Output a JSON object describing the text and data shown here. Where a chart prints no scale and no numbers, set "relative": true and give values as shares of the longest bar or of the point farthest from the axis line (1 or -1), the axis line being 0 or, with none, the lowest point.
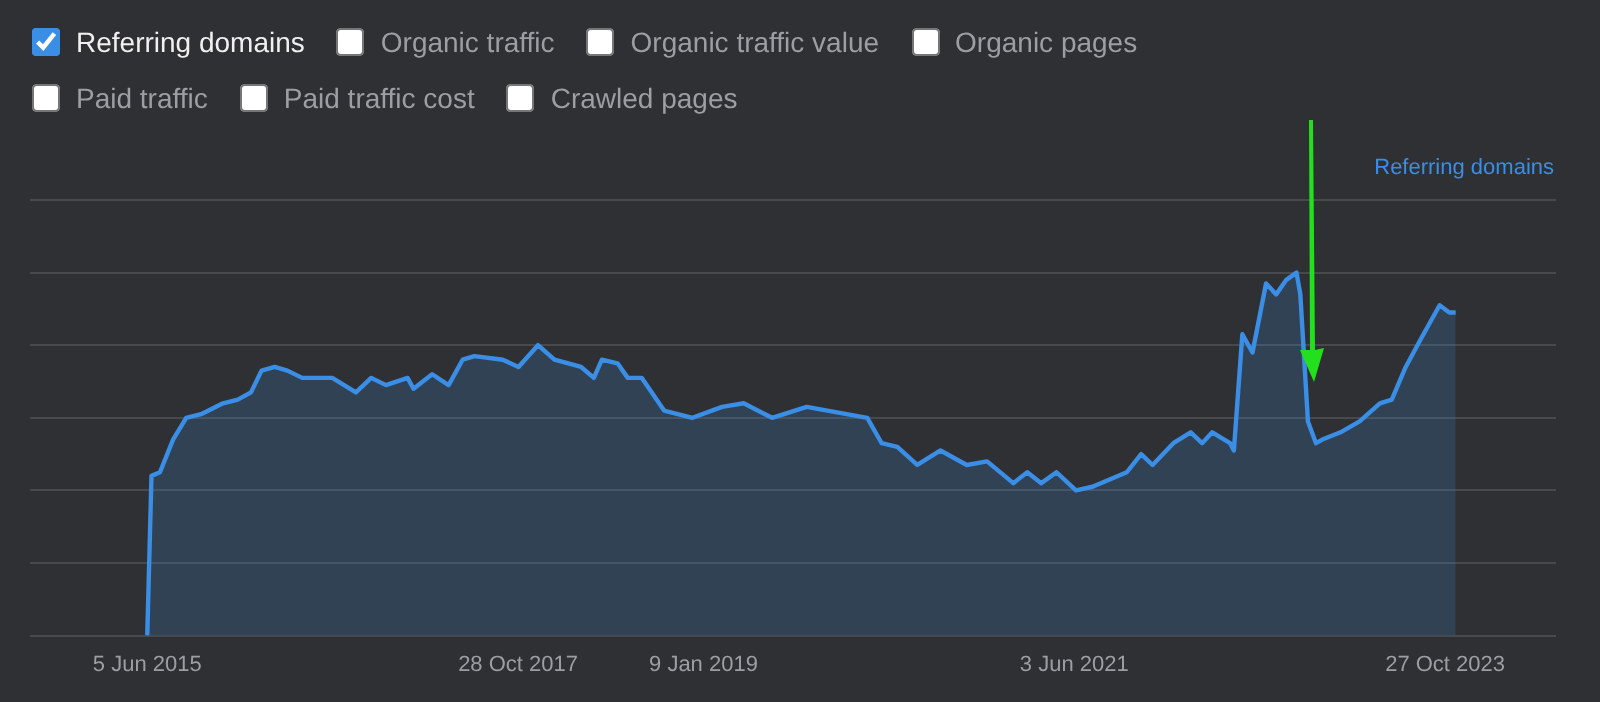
{
  "chart_data": {
    "type": "area",
    "relative": true,
    "ylabel": "Referring domains",
    "legend": "top left",
    "grid": "y",
    "xlim": [
      "2014-09-01",
      "2024-07-15"
    ],
    "xticks": [
      {
        "value": "2015-06-05",
        "label": "5 Jun 2015"
      },
      {
        "value": "2017-10-28",
        "label": "28 Oct 2017"
      },
      {
        "value": "2019-01-09",
        "label": "9 Jan 2019"
      },
      {
        "value": "2021-06-03",
        "label": "3 Jun 2021"
      },
      {
        "value": "2023-10-27",
        "label": "27 Oct 2023"
      }
    ],
    "annotations": [
      "Organic traffic",
      "Organic traffic value",
      "Organic pages",
      "Paid traffic",
      "Paid traffic cost",
      "Crawled pages"
    ],
    "series": [
      {
        "name": "Referring domains",
        "color": "#3a8ee6",
        "x": [
          "2015-06-05",
          "2015-06-15",
          "2015-07-05",
          "2015-08-05",
          "2015-09-05",
          "2015-10-10",
          "2015-12-01",
          "2016-01-05",
          "2016-02-05",
          "2016-03-01",
          "2016-04-01",
          "2016-05-01",
          "2016-06-05",
          "2016-08-15",
          "2016-10-10",
          "2016-11-15",
          "2016-12-20",
          "2017-02-09",
          "2017-02-23",
          "2017-04-08",
          "2017-05-17",
          "2017-06-19",
          "2017-07-17",
          "2017-09-22",
          "2017-10-29",
          "2017-12-14",
          "2018-01-22",
          "2018-03-26",
          "2018-04-25",
          "2018-05-14",
          "2018-06-20",
          "2018-07-14",
          "2018-08-16",
          "2018-10-08",
          "2018-12-14",
          "2019-02-22",
          "2019-04-14",
          "2019-06-20",
          "2019-09-10",
          "2020-01-31",
          "2020-03-05",
          "2020-04-11",
          "2020-05-28",
          "2020-07-22",
          "2020-09-22",
          "2020-11-09",
          "2021-01-10",
          "2021-02-12",
          "2021-03-17",
          "2021-04-22",
          "2021-06-07",
          "2021-07-16",
          "2021-10-05",
          "2021-11-08",
          "2021-12-05",
          "2022-01-23",
          "2022-03-05",
          "2022-04-01",
          "2022-04-25",
          "2022-06-06",
          "2022-06-15",
          "2022-07-05",
          "2022-07-29",
          "2022-08-30",
          "2022-09-23",
          "2022-10-17",
          "2022-11-10",
          "2022-11-19",
          "2022-12-07",
          "2022-12-26",
          "2023-01-10",
          "2023-02-22",
          "2023-04-08",
          "2023-05-26",
          "2023-06-23",
          "2023-07-26",
          "2023-09-01",
          "2023-10-14",
          "2023-11-06",
          "2023-11-21"
        ],
        "values": [
          0,
          0.44,
          0.45,
          0.54,
          0.6,
          0.61,
          0.64,
          0.65,
          0.67,
          0.73,
          0.74,
          0.73,
          0.71,
          0.71,
          0.67,
          0.71,
          0.69,
          0.71,
          0.68,
          0.72,
          0.69,
          0.76,
          0.77,
          0.76,
          0.74,
          0.8,
          0.76,
          0.74,
          0.71,
          0.76,
          0.75,
          0.71,
          0.71,
          0.62,
          0.6,
          0.63,
          0.64,
          0.6,
          0.63,
          0.6,
          0.53,
          0.52,
          0.47,
          0.51,
          0.47,
          0.48,
          0.42,
          0.45,
          0.42,
          0.45,
          0.4,
          0.41,
          0.45,
          0.5,
          0.47,
          0.53,
          0.56,
          0.53,
          0.56,
          0.53,
          0.51,
          0.83,
          0.78,
          0.97,
          0.94,
          0.98,
          1,
          0.94,
          0.59,
          0.53,
          0.54,
          0.56,
          0.59,
          0.64,
          0.65,
          0.74,
          0.82,
          0.91,
          0.89,
          0.89
        ]
      }
    ]
  }
}
